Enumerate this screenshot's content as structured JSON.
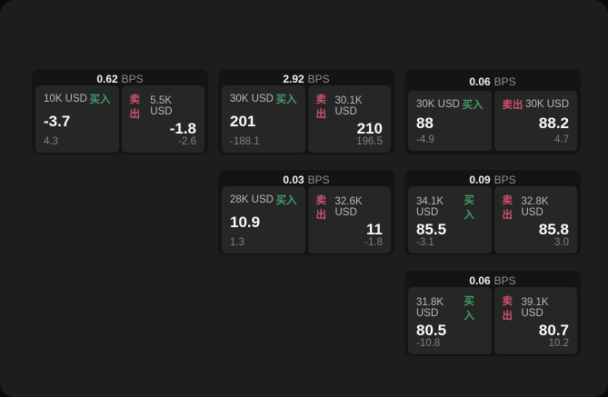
{
  "app": {
    "bps_suffix": "BPS",
    "buy_label": "买入",
    "sell_label": "卖出"
  },
  "colors": {
    "window_bg": "#1d1d1d",
    "card_bg": "#141414",
    "tile_bg": "#262626",
    "buy_accent": "#3f9e68",
    "sell_accent": "#ce516b"
  },
  "cards": [
    {
      "bps": "0.62",
      "buy": {
        "size": "10K USD",
        "price": "-3.7",
        "change": "4.3"
      },
      "sell": {
        "size": "5.5K USD",
        "price": "-1.8",
        "change": "-2.6"
      }
    },
    {
      "bps": "2.92",
      "buy": {
        "size": "30K USD",
        "price": "201",
        "change": "-188.1"
      },
      "sell": {
        "size": "30.1K USD",
        "price": "210",
        "change": "196.5"
      }
    },
    {
      "bps": "0.06",
      "buy": {
        "size": "30K USD",
        "price": "88",
        "change": "-4.9"
      },
      "sell": {
        "size": "30K USD",
        "price": "88.2",
        "change": "4.7"
      }
    },
    {
      "bps": "0.03",
      "buy": {
        "size": "28K USD",
        "price": "10.9",
        "change": "1.3"
      },
      "sell": {
        "size": "32.6K USD",
        "price": "11",
        "change": "-1.8"
      }
    },
    {
      "bps": "0.09",
      "buy": {
        "size": "34.1K USD",
        "price": "85.5",
        "change": "-3.1"
      },
      "sell": {
        "size": "32.8K USD",
        "price": "85.8",
        "change": "3.0"
      }
    },
    {
      "bps": "0.06",
      "buy": {
        "size": "31.8K USD",
        "price": "80.5",
        "change": "-10.8"
      },
      "sell": {
        "size": "39.1K USD",
        "price": "80.7",
        "change": "10.2"
      }
    }
  ]
}
